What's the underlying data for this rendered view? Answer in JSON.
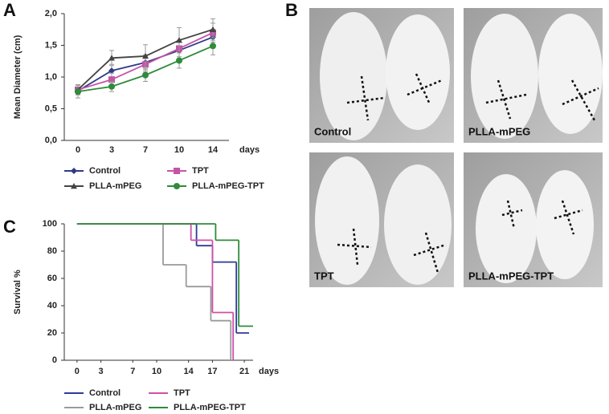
{
  "panel_labels": [
    "A",
    "B",
    "C"
  ],
  "photos": [
    {
      "label": "Control"
    },
    {
      "label": "PLLA-mPEG"
    },
    {
      "label": "TPT"
    },
    {
      "label": "PLLA-mPEG-TPT"
    }
  ],
  "chart_data": [
    {
      "type": "line",
      "ylabel": "Mean Diameter (cm)",
      "xlabel": "days",
      "categories": [
        "0",
        "3",
        "7",
        "10",
        "14"
      ],
      "ylim": [
        0,
        2
      ],
      "yticks": [
        {
          "value": 0,
          "label": "0,0"
        },
        {
          "value": 0.5,
          "label": "0,5"
        },
        {
          "value": 1,
          "label": "1,0"
        },
        {
          "value": 1.5,
          "label": "1,5"
        },
        {
          "value": 2,
          "label": "2,0"
        }
      ],
      "series": [
        {
          "name": "Control",
          "color": "#2e3a87",
          "marker": "diamond",
          "values": [
            0.78,
            1.1,
            1.23,
            1.42,
            1.63
          ],
          "errors": [
            0.06,
            0.1,
            0.12,
            0.14,
            0.12
          ]
        },
        {
          "name": "TPT",
          "color": "#c454a8",
          "marker": "square",
          "values": [
            0.8,
            0.96,
            1.2,
            1.45,
            1.7
          ],
          "errors": [
            0.07,
            0.1,
            0.12,
            0.13,
            0.15
          ]
        },
        {
          "name": "PLLA-mPEG",
          "color": "#444444",
          "marker": "triangle",
          "values": [
            0.8,
            1.3,
            1.33,
            1.58,
            1.75
          ],
          "errors": [
            0.08,
            0.12,
            0.18,
            0.2,
            0.17
          ]
        },
        {
          "name": "PLLA-mPEG-TPT",
          "color": "#2e8b3a",
          "marker": "circle",
          "values": [
            0.77,
            0.85,
            1.03,
            1.26,
            1.49
          ],
          "errors": [
            0.1,
            0.08,
            0.1,
            0.12,
            0.14
          ]
        }
      ]
    },
    {
      "type": "step",
      "ylabel": "Survival %",
      "xlabel": "days",
      "xlim": [
        -1.6,
        22.1
      ],
      "xticks": [
        0,
        3,
        7,
        10,
        14,
        17,
        21
      ],
      "ylim": [
        0,
        100
      ],
      "yticks": [
        0,
        20,
        40,
        60,
        80,
        100
      ],
      "series": [
        {
          "name": "Control",
          "color": "#2e3a9a",
          "x": [
            0,
            15,
            17,
            20,
            21.6
          ],
          "values": [
            100,
            84,
            72,
            20,
            20
          ]
        },
        {
          "name": "TPT",
          "color": "#d04fa8",
          "x": [
            0,
            14.3,
            17,
            19.6
          ],
          "values": [
            100,
            88,
            35,
            0
          ]
        },
        {
          "name": "PLLA-mPEG",
          "color": "#9a9a9a",
          "x": [
            0,
            10.8,
            13.7,
            16.8,
            19.3
          ],
          "values": [
            100,
            70,
            54,
            29,
            0
          ]
        },
        {
          "name": "PLLA-mPEG-TPT",
          "color": "#2e8b3a",
          "x": [
            0,
            17.4,
            20.3,
            22.1
          ],
          "values": [
            100,
            88,
            25,
            25
          ]
        }
      ]
    }
  ]
}
